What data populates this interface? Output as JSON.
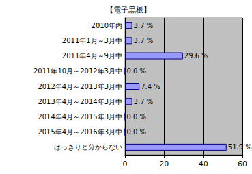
{
  "chart_data": {
    "type": "bar",
    "title": "【電子黒板】",
    "orientation": "horizontal",
    "categories": [
      "2010年内",
      "2011年1月～3月中",
      "2011年4月～9月中",
      "2011年10月～2012年3月中",
      "2012年4月～2013年3月中",
      "2013年4月～2014年3月中",
      "2014年4月～2015年3月中",
      "2015年4月～2016年3月中",
      "はっきりと分からない"
    ],
    "values": [
      3.7,
      3.7,
      29.6,
      0.0,
      7.4,
      3.7,
      0.0,
      0.0,
      51.9
    ],
    "value_labels": [
      "3.7 %",
      "3.7 %",
      "29.6 %",
      "0.0 %",
      "7.4 %",
      "3.7 %",
      "0.0 %",
      "0.0 %",
      "51.9 %"
    ],
    "color": "#9999ff",
    "xlim": [
      0,
      60
    ],
    "xticks": [
      0,
      20,
      40,
      60
    ],
    "grid": true,
    "data_labels": true
  }
}
